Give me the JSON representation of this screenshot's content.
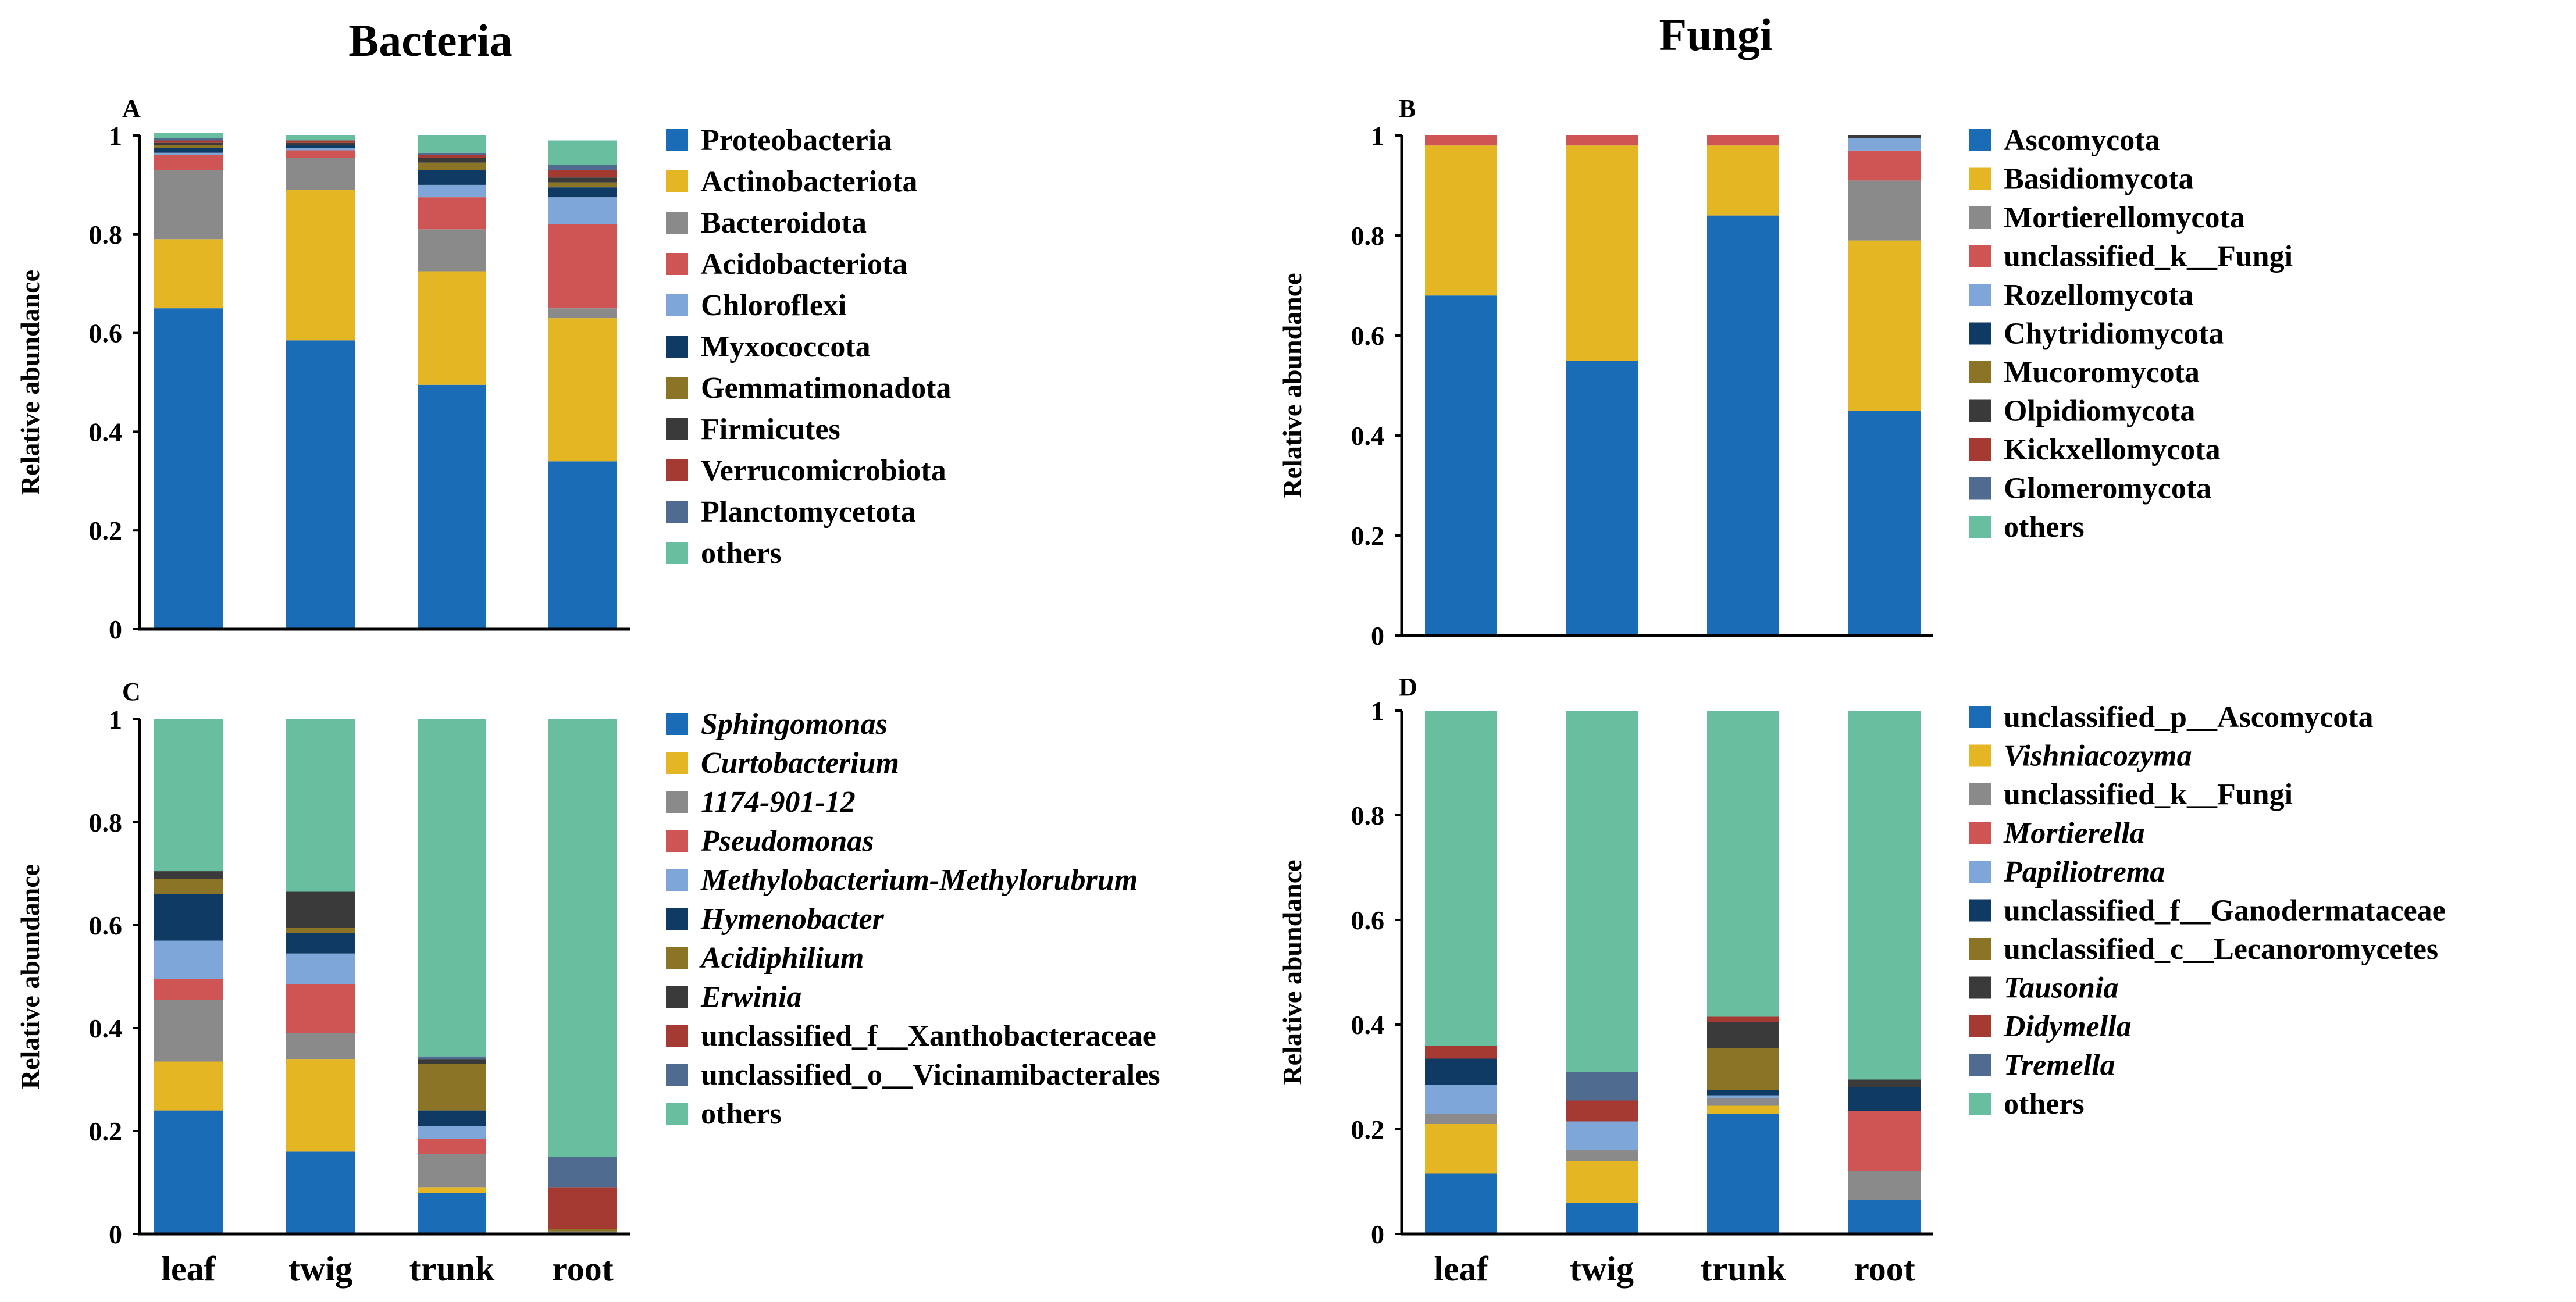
{
  "titles": {
    "bacteria": "Bacteria",
    "fungi": "Fungi"
  },
  "colors": {
    "blue": "#1a6cb6",
    "gold": "#e4b623",
    "gray": "#8a8a8a",
    "red": "#cf5555",
    "lightblue": "#7fa6d9",
    "navy": "#0f3a64",
    "olive": "#8b7426",
    "dark": "#3a3a3a",
    "darkred": "#a53a33",
    "slate": "#4f6b90",
    "teal": "#67bf9f"
  },
  "chart_data": [
    {
      "panel": "A",
      "type": "bar",
      "stacked": true,
      "title": "Bacteria",
      "ylabel": "Relative abundance",
      "ylim": [
        0,
        1
      ],
      "yticks": [
        "0",
        "0.2",
        "0.4",
        "0.6",
        "0.8",
        "1"
      ],
      "categories": [
        "leaf",
        "twig",
        "trunk",
        "root"
      ],
      "show_xlabels": false,
      "series": [
        {
          "name": "Proteobacteria",
          "color": "#1a6cb6",
          "values": [
            0.65,
            0.585,
            0.495,
            0.34
          ]
        },
        {
          "name": "Actinobacteriota",
          "color": "#e4b623",
          "values": [
            0.14,
            0.305,
            0.23,
            0.29
          ]
        },
        {
          "name": "Bacteroidota",
          "color": "#8a8a8a",
          "values": [
            0.14,
            0.065,
            0.085,
            0.02
          ]
        },
        {
          "name": "Acidobacteriota",
          "color": "#cf5555",
          "values": [
            0.03,
            0.015,
            0.065,
            0.17
          ]
        },
        {
          "name": "Chloroflexi",
          "color": "#7fa6d9",
          "values": [
            0.005,
            0.005,
            0.025,
            0.055
          ]
        },
        {
          "name": "Myxococcota",
          "color": "#0f3a64",
          "values": [
            0.01,
            0.005,
            0.03,
            0.02
          ]
        },
        {
          "name": "Gemmatimonadota",
          "color": "#8b7426",
          "values": [
            0.005,
            0.0,
            0.015,
            0.01
          ]
        },
        {
          "name": "Firmicutes",
          "color": "#3a3a3a",
          "values": [
            0.005,
            0.005,
            0.01,
            0.01
          ]
        },
        {
          "name": "Verrucomicrobiota",
          "color": "#a53a33",
          "values": [
            0.005,
            0.005,
            0.005,
            0.015
          ]
        },
        {
          "name": "Planctomycetota",
          "color": "#4f6b90",
          "values": [
            0.005,
            0.0,
            0.005,
            0.01
          ]
        },
        {
          "name": "others",
          "color": "#67bf9f",
          "values": [
            0.01,
            0.01,
            0.035,
            0.05
          ]
        }
      ]
    },
    {
      "panel": "B",
      "type": "bar",
      "stacked": true,
      "title": "Fungi",
      "ylabel": "Relative abundance",
      "ylim": [
        0,
        1
      ],
      "yticks": [
        "0",
        "0.2",
        "0.4",
        "0.6",
        "0.8",
        "1"
      ],
      "categories": [
        "leaf",
        "twig",
        "trunk",
        "root"
      ],
      "show_xlabels": false,
      "series": [
        {
          "name": "Ascomycota",
          "color": "#1a6cb6",
          "values": [
            0.68,
            0.55,
            0.84,
            0.45
          ]
        },
        {
          "name": "Basidiomycota",
          "color": "#e4b623",
          "values": [
            0.3,
            0.43,
            0.14,
            0.34
          ]
        },
        {
          "name": "Mortierellomycota",
          "color": "#8a8a8a",
          "values": [
            0.0,
            0.0,
            0.0,
            0.12
          ]
        },
        {
          "name": "unclassified_k__Fungi",
          "color": "#cf5555",
          "values": [
            0.02,
            0.02,
            0.02,
            0.06
          ]
        },
        {
          "name": "Rozellomycota",
          "color": "#7fa6d9",
          "values": [
            0.0,
            0.0,
            0.0,
            0.025
          ]
        },
        {
          "name": "Chytridiomycota",
          "color": "#0f3a64",
          "values": [
            0.0,
            0.0,
            0.0,
            0.0
          ]
        },
        {
          "name": "Mucoromycota",
          "color": "#8b7426",
          "values": [
            0.0,
            0.0,
            0.0,
            0.0
          ]
        },
        {
          "name": "Olpidiomycota",
          "color": "#3a3a3a",
          "values": [
            0.0,
            0.0,
            0.0,
            0.005
          ]
        },
        {
          "name": "Kickxellomycota",
          "color": "#a53a33",
          "values": [
            0.0,
            0.0,
            0.0,
            0.0
          ]
        },
        {
          "name": "Glomeromycota",
          "color": "#4f6b90",
          "values": [
            0.0,
            0.0,
            0.0,
            0.0
          ]
        },
        {
          "name": "others",
          "color": "#67bf9f",
          "values": [
            0.0,
            0.0,
            0.0,
            0.0
          ]
        }
      ]
    },
    {
      "panel": "C",
      "type": "bar",
      "stacked": true,
      "ylabel": "Relative abundance",
      "ylim": [
        0,
        1
      ],
      "yticks": [
        "0",
        "0.2",
        "0.4",
        "0.6",
        "0.8",
        "1"
      ],
      "categories": [
        "leaf",
        "twig",
        "trunk",
        "root"
      ],
      "show_xlabels": true,
      "series": [
        {
          "name": "Sphingomonas",
          "italic": true,
          "color": "#1a6cb6",
          "values": [
            0.24,
            0.16,
            0.08,
            0.0
          ]
        },
        {
          "name": "Curtobacterium",
          "italic": true,
          "color": "#e4b623",
          "values": [
            0.095,
            0.18,
            0.01,
            0.0
          ]
        },
        {
          "name": "1174-901-12",
          "italic": true,
          "color": "#8a8a8a",
          "values": [
            0.12,
            0.05,
            0.065,
            0.005
          ]
        },
        {
          "name": "Pseudomonas",
          "italic": true,
          "color": "#cf5555",
          "values": [
            0.04,
            0.095,
            0.03,
            0.0
          ]
        },
        {
          "name": "Methylobacterium-Methylorubrum",
          "italic": true,
          "color": "#7fa6d9",
          "values": [
            0.075,
            0.06,
            0.025,
            0.0
          ]
        },
        {
          "name": "Hymenobacter",
          "italic": true,
          "color": "#0f3a64",
          "values": [
            0.09,
            0.04,
            0.03,
            0.0
          ]
        },
        {
          "name": "Acidiphilium",
          "italic": true,
          "color": "#8b7426",
          "values": [
            0.03,
            0.01,
            0.09,
            0.005
          ]
        },
        {
          "name": "Erwinia",
          "italic": true,
          "color": "#3a3a3a",
          "values": [
            0.015,
            0.07,
            0.01,
            0.0
          ]
        },
        {
          "name": "unclassified_f__Xanthobacteraceae",
          "italic": false,
          "color": "#a53a33",
          "values": [
            0.0,
            0.0,
            0.0,
            0.08
          ]
        },
        {
          "name": "unclassified_o__Vicinamibacterales",
          "italic": false,
          "color": "#4f6b90",
          "values": [
            0.0,
            0.0,
            0.005,
            0.06
          ]
        },
        {
          "name": "others",
          "italic": false,
          "color": "#67bf9f",
          "values": [
            0.295,
            0.335,
            0.655,
            0.85
          ]
        }
      ]
    },
    {
      "panel": "D",
      "type": "bar",
      "stacked": true,
      "ylabel": "Relative abundance",
      "ylim": [
        0,
        1
      ],
      "yticks": [
        "0",
        "0.2",
        "0.4",
        "0.6",
        "0.8",
        "1"
      ],
      "categories": [
        "leaf",
        "twig",
        "trunk",
        "root"
      ],
      "show_xlabels": true,
      "series": [
        {
          "name": "unclassified_p__Ascomycota",
          "italic": false,
          "color": "#1a6cb6",
          "values": [
            0.115,
            0.06,
            0.23,
            0.065
          ]
        },
        {
          "name": "Vishniacozyma",
          "italic": true,
          "color": "#e4b623",
          "values": [
            0.095,
            0.08,
            0.015,
            0.0
          ]
        },
        {
          "name": "unclassified_k__Fungi",
          "italic": false,
          "color": "#8a8a8a",
          "values": [
            0.02,
            0.02,
            0.015,
            0.055
          ]
        },
        {
          "name": "Mortierella",
          "italic": true,
          "color": "#cf5555",
          "values": [
            0.0,
            0.0,
            0.0,
            0.115
          ]
        },
        {
          "name": "Papiliotrema",
          "italic": true,
          "color": "#7fa6d9",
          "values": [
            0.055,
            0.055,
            0.005,
            0.0
          ]
        },
        {
          "name": "unclassified_f__Ganodermataceae",
          "italic": false,
          "color": "#0f3a64",
          "values": [
            0.05,
            0.0,
            0.01,
            0.045
          ]
        },
        {
          "name": "unclassified_c__Lecanoromycetes",
          "italic": false,
          "color": "#8b7426",
          "values": [
            0.0,
            0.0,
            0.08,
            0.0
          ]
        },
        {
          "name": "Tausonia",
          "italic": true,
          "color": "#3a3a3a",
          "values": [
            0.0,
            0.0,
            0.05,
            0.015
          ]
        },
        {
          "name": "Didymella",
          "italic": true,
          "color": "#a53a33",
          "values": [
            0.025,
            0.04,
            0.01,
            0.0
          ]
        },
        {
          "name": "Tremella",
          "italic": true,
          "color": "#4f6b90",
          "values": [
            0.0,
            0.055,
            0.0,
            0.0
          ]
        },
        {
          "name": "others",
          "italic": false,
          "color": "#67bf9f",
          "values": [
            0.64,
            0.69,
            0.585,
            0.705
          ]
        }
      ]
    }
  ]
}
